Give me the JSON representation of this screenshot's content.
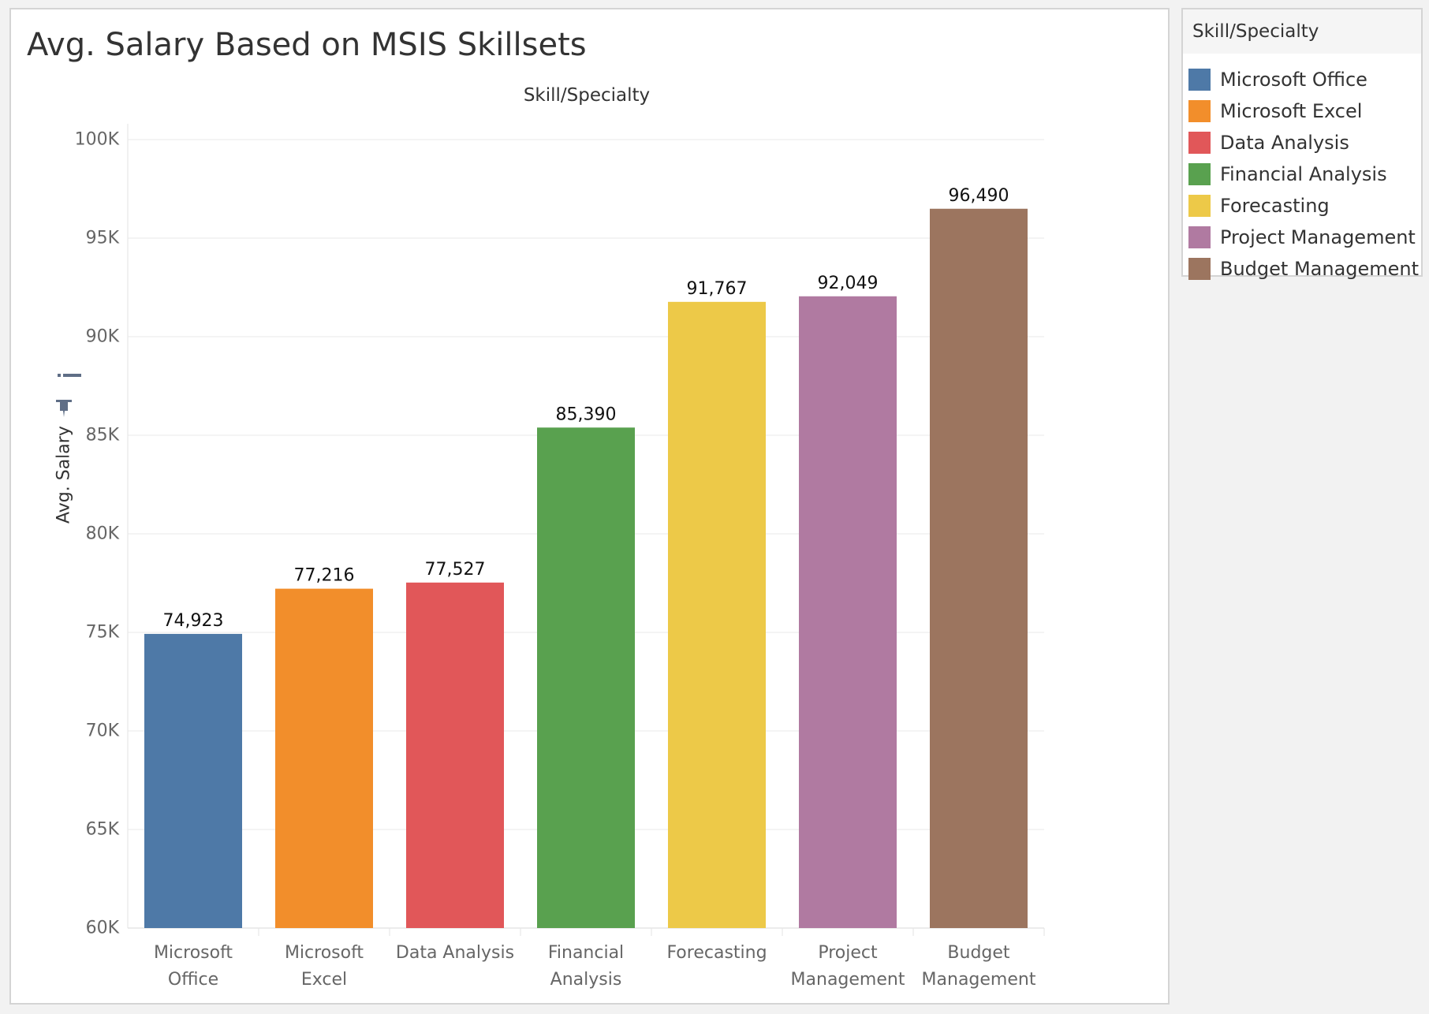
{
  "title": "Avg. Salary Based on MSIS Skillsets",
  "legend": {
    "title": "Skill/Specialty",
    "items": [
      {
        "label": "Microsoft Office",
        "color": "#4e79a7"
      },
      {
        "label": "Microsoft Excel",
        "color": "#f28e2b"
      },
      {
        "label": "Data Analysis",
        "color": "#e15759"
      },
      {
        "label": "Financial Analysis",
        "color": "#59a14f"
      },
      {
        "label": "Forecasting",
        "color": "#edc948"
      },
      {
        "label": "Project Management",
        "color": "#b07aa1"
      },
      {
        "label": "Budget Management",
        "color": "#9c755f"
      }
    ]
  },
  "chart_data": {
    "type": "bar",
    "title": "Avg. Salary Based on MSIS Skillsets",
    "column_header": "Skill/Specialty",
    "xlabel": "",
    "ylabel": "Avg. Salary",
    "ylim": [
      60000,
      100000
    ],
    "yticks": [
      {
        "value": 60000,
        "label": "60K"
      },
      {
        "value": 65000,
        "label": "65K"
      },
      {
        "value": 70000,
        "label": "70K"
      },
      {
        "value": 75000,
        "label": "75K"
      },
      {
        "value": 80000,
        "label": "80K"
      },
      {
        "value": 85000,
        "label": "85K"
      },
      {
        "value": 90000,
        "label": "90K"
      },
      {
        "value": 95000,
        "label": "95K"
      },
      {
        "value": 100000,
        "label": "100K"
      }
    ],
    "grid": true,
    "legend_position": "right",
    "categories": [
      "Microsoft Office",
      "Microsoft Excel",
      "Data Analysis",
      "Financial Analysis",
      "Forecasting",
      "Project Management",
      "Budget Management"
    ],
    "category_label_lines": [
      [
        "Microsoft",
        "Office"
      ],
      [
        "Microsoft",
        "Excel"
      ],
      [
        "Data Analysis"
      ],
      [
        "Financial",
        "Analysis"
      ],
      [
        "Forecasting"
      ],
      [
        "Project",
        "Management"
      ],
      [
        "Budget",
        "Management"
      ]
    ],
    "values": [
      74923,
      77216,
      77527,
      85390,
      91767,
      92049,
      96490
    ],
    "value_labels": [
      "74,923",
      "77,216",
      "77,527",
      "85,390",
      "91,767",
      "92,049",
      "96,490"
    ],
    "colors": [
      "#4e79a7",
      "#f28e2b",
      "#e15759",
      "#59a14f",
      "#edc948",
      "#b07aa1",
      "#9c755f"
    ]
  }
}
